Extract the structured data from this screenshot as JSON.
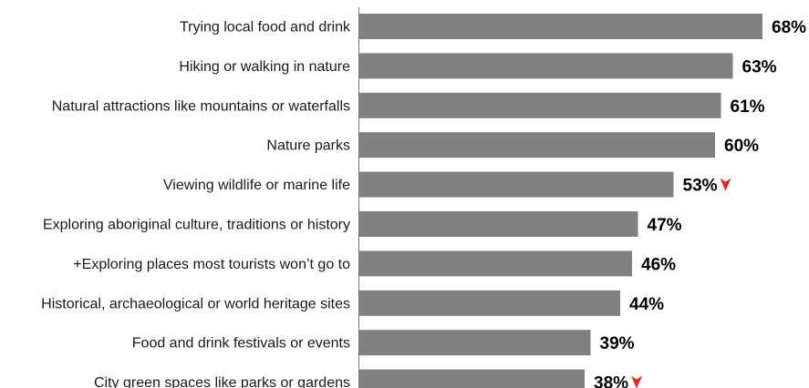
{
  "chart_data": {
    "type": "bar",
    "orientation": "horizontal",
    "categories": [
      "Trying local food and drink",
      "Hiking or walking in nature",
      "Natural attractions like mountains or waterfalls",
      "Nature parks",
      "Viewing wildlife or marine life",
      "Exploring aboriginal culture, traditions or history",
      "+Exploring places most tourists won’t go to",
      "Historical, archaeological or world heritage sites",
      "Food and drink festivals or events",
      "City green spaces like parks or gardens"
    ],
    "values": [
      68,
      63,
      61,
      60,
      53,
      47,
      46,
      44,
      39,
      38
    ],
    "value_labels": [
      "68%",
      "63%",
      "61%",
      "60%",
      "53%",
      "47%",
      "46%",
      "44%",
      "39%",
      "38%"
    ],
    "decrease_markers": [
      false,
      false,
      false,
      false,
      true,
      false,
      false,
      false,
      false,
      true
    ],
    "title": "",
    "xlabel": "",
    "ylabel": "",
    "xlim": [
      0,
      68
    ],
    "grid": false,
    "legend": "none",
    "bar_color": "#808080",
    "marker_color": "#e8241d",
    "marker_icon": "down-arrow-icon"
  }
}
